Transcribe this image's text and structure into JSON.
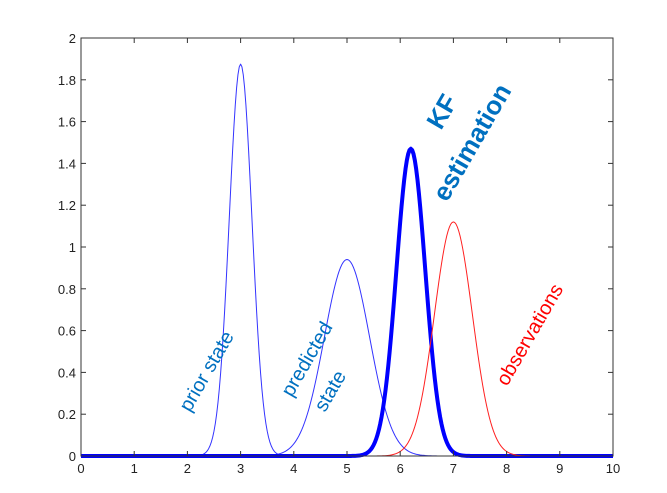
{
  "chart_data": {
    "type": "line",
    "title": "",
    "xlabel": "",
    "ylabel": "",
    "xlim": [
      0,
      10
    ],
    "ylim": [
      0,
      2
    ],
    "grid": false,
    "legend": "none (inline annotations)",
    "x_ticks": [
      "0",
      "1",
      "2",
      "3",
      "4",
      "5",
      "6",
      "7",
      "8",
      "9",
      "10"
    ],
    "y_ticks": [
      "0",
      "0.2",
      "0.4",
      "0.6",
      "0.8",
      "1",
      "1.2",
      "1.4",
      "1.6",
      "1.8",
      "2"
    ],
    "series": [
      {
        "name": "prior state",
        "distribution": "gaussian",
        "mean": 3.0,
        "sigma": 0.213,
        "peak": 1.875,
        "color": "#3333ff",
        "line_width": 1
      },
      {
        "name": "predicted state",
        "distribution": "gaussian",
        "mean": 5.0,
        "sigma": 0.424,
        "peak": 0.94,
        "color": "#3333ff",
        "line_width": 1
      },
      {
        "name": "KF estimation",
        "distribution": "gaussian",
        "mean": 6.2,
        "sigma": 0.271,
        "peak": 1.47,
        "color": "#0000ff",
        "line_width": 4
      },
      {
        "name": "observations",
        "distribution": "gaussian",
        "mean": 7.0,
        "sigma": 0.356,
        "peak": 1.12,
        "color": "#ff2020",
        "line_width": 1
      }
    ],
    "annotations": [
      {
        "text": "prior state",
        "x": 2.5,
        "y": 0.55,
        "rotation": -60,
        "color": "#0070c0",
        "bold": false
      },
      {
        "text": "predicted",
        "x": 4.5,
        "y": 0.55,
        "rotation": -60,
        "color": "#0070c0",
        "bold": false
      },
      {
        "text": "state",
        "x": 4.85,
        "y": 0.35,
        "rotation": -60,
        "color": "#0070c0",
        "bold": false
      },
      {
        "text": "KF",
        "x": 6.9,
        "y": 1.6,
        "rotation": -60,
        "color": "#0070c0",
        "bold": true
      },
      {
        "text": "estimation",
        "x": 7.6,
        "y": 1.55,
        "rotation": -60,
        "color": "#0070c0",
        "bold": true
      },
      {
        "text": "observations",
        "x": 8.2,
        "y": 0.6,
        "rotation": -60,
        "color": "#ff0000",
        "bold": false
      }
    ]
  }
}
